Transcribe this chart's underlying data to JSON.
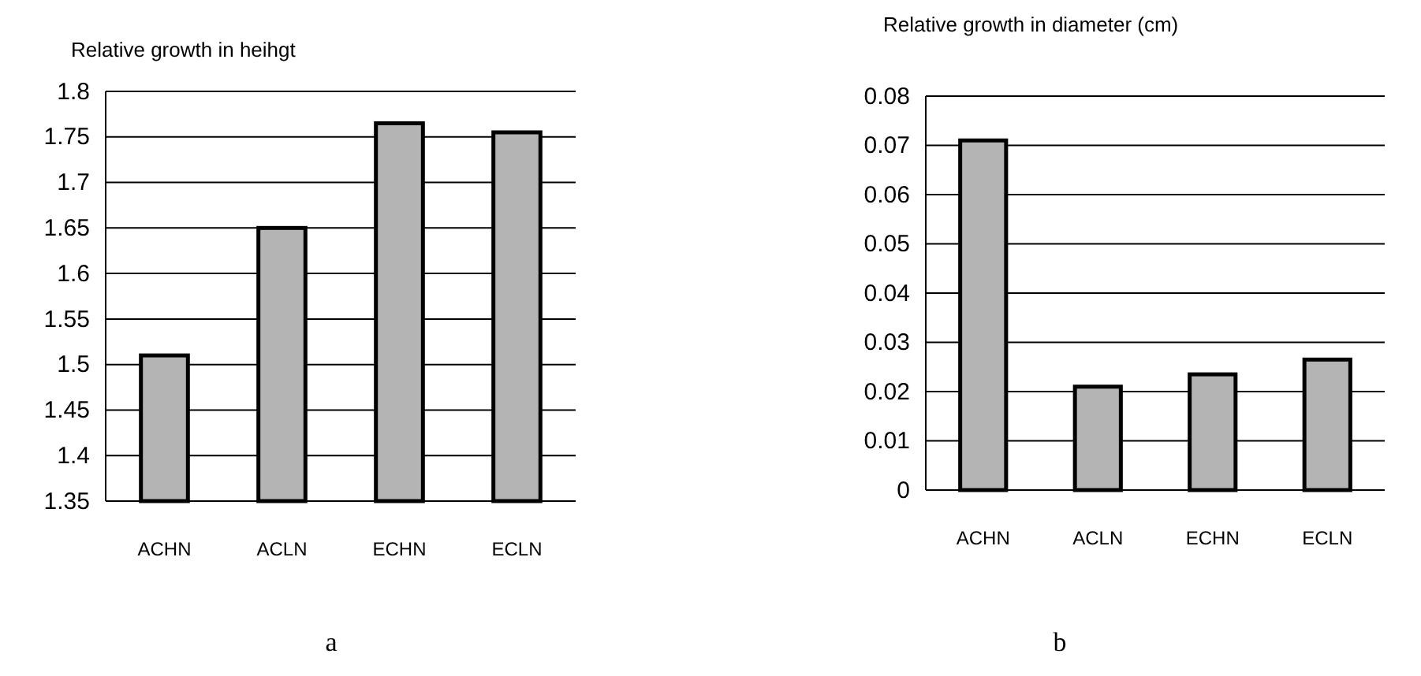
{
  "chart_data": [
    {
      "type": "bar",
      "title": "Relative growth in heihgt",
      "categories": [
        "ACHN",
        "ACLN",
        "ECHN",
        "ECLN"
      ],
      "values": [
        1.51,
        1.65,
        1.765,
        1.755
      ],
      "color": "#b4b4b4",
      "ylim": [
        1.35,
        1.8
      ],
      "yticks": [
        1.35,
        1.4,
        1.45,
        1.5,
        1.55,
        1.6,
        1.65,
        1.7,
        1.75,
        1.8
      ],
      "grid": "y",
      "annotations": [
        "a"
      ]
    },
    {
      "type": "bar",
      "title": "Relative growth in diameter (cm)",
      "categories": [
        "ACHN",
        "ACLN",
        "ECHN",
        "ECLN"
      ],
      "values": [
        0.071,
        0.021,
        0.0235,
        0.0265
      ],
      "color": "#b4b4b4",
      "ylim": [
        0,
        0.08
      ],
      "yticks": [
        0,
        0.01,
        0.02,
        0.03,
        0.04,
        0.05,
        0.06,
        0.07,
        0.08
      ],
      "grid": "y",
      "annotations": [
        "b"
      ]
    }
  ]
}
